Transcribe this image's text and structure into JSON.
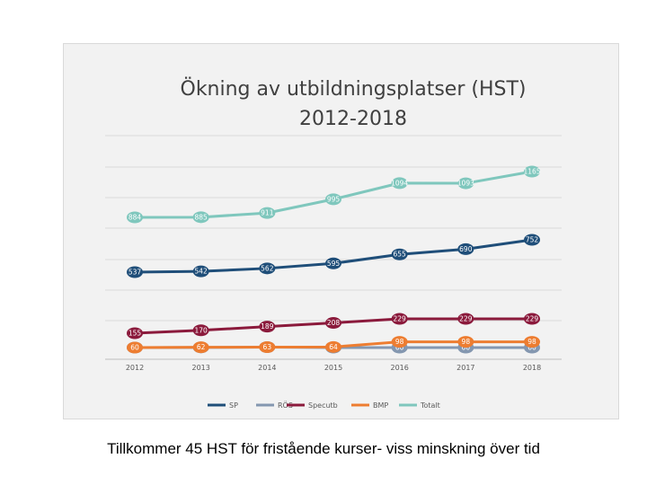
{
  "chart_data": {
    "type": "line",
    "title": [
      "Ökning av utbildningsplatser (HST)",
      "2012-2018"
    ],
    "categories": [
      "2012",
      "2013",
      "2014",
      "2015",
      "2016",
      "2017",
      "2018"
    ],
    "series": [
      {
        "name": "SP",
        "color": "#1f4e79",
        "values": [
          537,
          542,
          562,
          595,
          655,
          690,
          752
        ]
      },
      {
        "name": "RÖS",
        "color": "#8497b0",
        "values": [
          60,
          61,
          63,
          60,
          60,
          60,
          60
        ]
      },
      {
        "name": "Specutb",
        "color": "#8b1a3c",
        "values": [
          155,
          170,
          189,
          208,
          229,
          229,
          229
        ]
      },
      {
        "name": "BMP",
        "color": "#ed7d31",
        "values": [
          60,
          62,
          63,
          64,
          98,
          98,
          98
        ]
      },
      {
        "name": "Totalt",
        "color": "#7fc7bd",
        "values": [
          884,
          885,
          911,
          995,
          1094,
          1093,
          1165
        ]
      }
    ],
    "grid": true,
    "legend": "bottom"
  },
  "caption": "Tillkommer 45 HST för fristående kurser- viss minskning över tid"
}
